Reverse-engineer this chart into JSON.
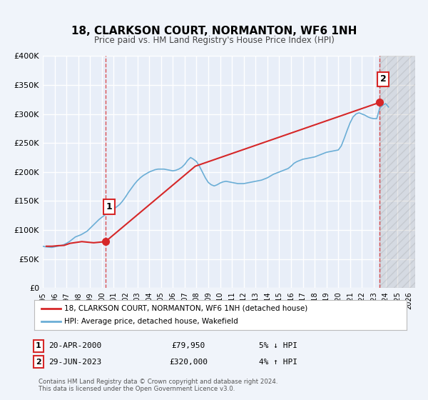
{
  "title": "18, CLARKSON COURT, NORMANTON, WF6 1NH",
  "subtitle": "Price paid vs. HM Land Registry's House Price Index (HPI)",
  "bg_color": "#f0f4fa",
  "plot_bg_color": "#e8eef8",
  "grid_color": "#ffffff",
  "ylim": [
    0,
    400000
  ],
  "yticks": [
    0,
    50000,
    100000,
    150000,
    200000,
    250000,
    300000,
    350000,
    400000
  ],
  "ytick_labels": [
    "£0",
    "£50K",
    "£100K",
    "£150K",
    "£200K",
    "£250K",
    "£300K",
    "£350K",
    "£400K"
  ],
  "xmin": 1995.0,
  "xmax": 2026.5,
  "xticks": [
    1995,
    1996,
    1997,
    1998,
    1999,
    2000,
    2001,
    2002,
    2003,
    2004,
    2005,
    2006,
    2007,
    2008,
    2009,
    2010,
    2011,
    2012,
    2013,
    2014,
    2015,
    2016,
    2017,
    2018,
    2019,
    2020,
    2021,
    2022,
    2023,
    2024,
    2025,
    2026
  ],
  "hpi_color": "#6baed6",
  "price_color": "#d62728",
  "marker1_x": 2000.3,
  "marker1_y": 79950,
  "marker2_x": 2023.5,
  "marker2_y": 320000,
  "annotation1": "1",
  "annotation2": "2",
  "legend_label1": "18, CLARKSON COURT, NORMANTON, WF6 1NH (detached house)",
  "legend_label2": "HPI: Average price, detached house, Wakefield",
  "table_rows": [
    {
      "num": "1",
      "date": "20-APR-2000",
      "price": "£79,950",
      "hpi": "5% ↓ HPI"
    },
    {
      "num": "2",
      "date": "29-JUN-2023",
      "price": "£320,000",
      "hpi": "4% ↑ HPI"
    }
  ],
  "footer1": "Contains HM Land Registry data © Crown copyright and database right 2024.",
  "footer2": "This data is licensed under the Open Government Licence v3.0.",
  "hpi_data_x": [
    1995.0,
    1995.25,
    1995.5,
    1995.75,
    1996.0,
    1996.25,
    1996.5,
    1996.75,
    1997.0,
    1997.25,
    1997.5,
    1997.75,
    1998.0,
    1998.25,
    1998.5,
    1998.75,
    1999.0,
    1999.25,
    1999.5,
    1999.75,
    2000.0,
    2000.25,
    2000.5,
    2000.75,
    2001.0,
    2001.25,
    2001.5,
    2001.75,
    2002.0,
    2002.25,
    2002.5,
    2002.75,
    2003.0,
    2003.25,
    2003.5,
    2003.75,
    2004.0,
    2004.25,
    2004.5,
    2004.75,
    2005.0,
    2005.25,
    2005.5,
    2005.75,
    2006.0,
    2006.25,
    2006.5,
    2006.75,
    2007.0,
    2007.25,
    2007.5,
    2007.75,
    2008.0,
    2008.25,
    2008.5,
    2008.75,
    2009.0,
    2009.25,
    2009.5,
    2009.75,
    2010.0,
    2010.25,
    2010.5,
    2010.75,
    2011.0,
    2011.25,
    2011.5,
    2011.75,
    2012.0,
    2012.25,
    2012.5,
    2012.75,
    2013.0,
    2013.25,
    2013.5,
    2013.75,
    2014.0,
    2014.25,
    2014.5,
    2014.75,
    2015.0,
    2015.25,
    2015.5,
    2015.75,
    2016.0,
    2016.25,
    2016.5,
    2016.75,
    2017.0,
    2017.25,
    2017.5,
    2017.75,
    2018.0,
    2018.25,
    2018.5,
    2018.75,
    2019.0,
    2019.25,
    2019.5,
    2019.75,
    2020.0,
    2020.25,
    2020.5,
    2020.75,
    2021.0,
    2021.25,
    2021.5,
    2021.75,
    2022.0,
    2022.25,
    2022.5,
    2022.75,
    2023.0,
    2023.25,
    2023.5,
    2023.75,
    2024.0,
    2024.25
  ],
  "hpi_data_y": [
    72000,
    71000,
    70500,
    70000,
    71000,
    72000,
    73000,
    74500,
    77000,
    80000,
    84000,
    88000,
    90000,
    92000,
    95000,
    98000,
    103000,
    108000,
    113000,
    118000,
    122000,
    126000,
    130000,
    133000,
    136000,
    140000,
    144000,
    150000,
    157000,
    165000,
    172000,
    179000,
    185000,
    190000,
    194000,
    197000,
    200000,
    202000,
    204000,
    205000,
    205000,
    205000,
    204000,
    203000,
    202000,
    203000,
    205000,
    208000,
    213000,
    220000,
    225000,
    222000,
    218000,
    210000,
    200000,
    190000,
    182000,
    178000,
    176000,
    178000,
    181000,
    183000,
    184000,
    183000,
    182000,
    181000,
    180000,
    180000,
    180000,
    181000,
    182000,
    183000,
    184000,
    185000,
    186000,
    188000,
    190000,
    193000,
    196000,
    198000,
    200000,
    202000,
    204000,
    206000,
    210000,
    215000,
    218000,
    220000,
    222000,
    223000,
    224000,
    225000,
    226000,
    228000,
    230000,
    232000,
    234000,
    235000,
    236000,
    237000,
    238000,
    245000,
    258000,
    272000,
    285000,
    295000,
    300000,
    302000,
    300000,
    298000,
    295000,
    293000,
    292000,
    292000,
    310000,
    315000,
    318000,
    312000
  ],
  "price_data_x": [
    1995.3,
    1995.8,
    1996.3,
    1996.8,
    1997.3,
    1998.3,
    1999.3,
    2000.3,
    2007.9,
    2023.5
  ],
  "price_data_y": [
    72000,
    72000,
    73000,
    73500,
    77000,
    80000,
    78000,
    79950,
    210000,
    320000
  ]
}
